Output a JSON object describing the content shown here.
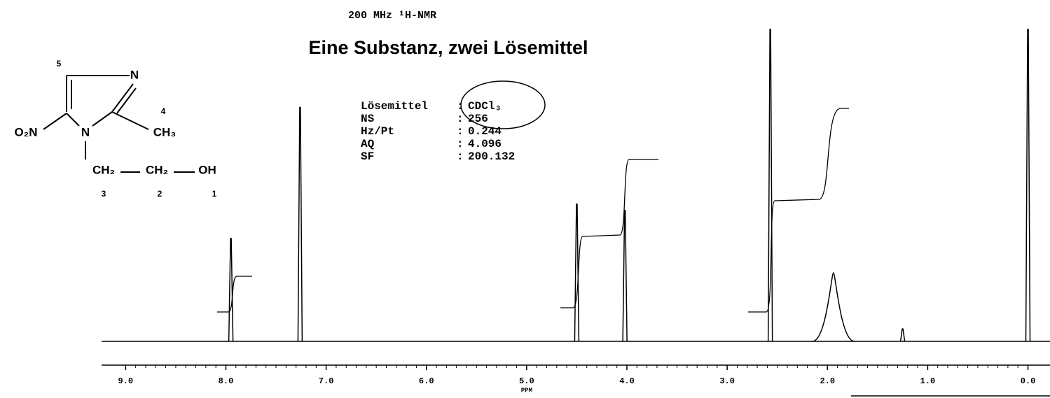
{
  "chart_data": {
    "type": "spectrum",
    "subtitle": "200 MHz ¹H-NMR",
    "title": "Eine Substanz, zwei Lösemittel",
    "xlabel": "PPM",
    "parameters": [
      [
        "Lösemittel",
        "CDCl₃"
      ],
      [
        "NS",
        "256"
      ],
      [
        "Hz/Pt",
        "0.244"
      ],
      [
        "AQ",
        "4.096"
      ],
      [
        "SF",
        "200.132"
      ]
    ],
    "molecule": {
      "atoms": [
        "N",
        "O₂N",
        "N",
        "CH₃",
        "CH₂",
        "CH₂",
        "OH"
      ],
      "numbers": [
        "5",
        "4",
        "3",
        "2",
        "1"
      ]
    },
    "x": [
      7.95,
      7.26,
      4.5,
      4.02,
      2.57,
      1.94,
      1.25,
      0.0
    ],
    "values": [
      33,
      75,
      44,
      42,
      100,
      22,
      4,
      100
    ],
    "xlim": [
      9.24,
      -0.22
    ],
    "ylim": [
      0,
      100
    ],
    "xticks": [
      {
        "value": 9,
        "label": "9.0"
      },
      {
        "value": 8,
        "label": "8.0"
      },
      {
        "value": 7,
        "label": "7.0"
      },
      {
        "value": 6,
        "label": "6.0"
      },
      {
        "value": 5,
        "label": "5.0"
      },
      {
        "value": 4,
        "label": "4.0"
      },
      {
        "value": 3,
        "label": "3.0"
      },
      {
        "value": 2,
        "label": "2.0"
      },
      {
        "value": 1,
        "label": "1.0"
      },
      {
        "value": 0,
        "label": "0.0"
      }
    ],
    "color": "#000000"
  }
}
